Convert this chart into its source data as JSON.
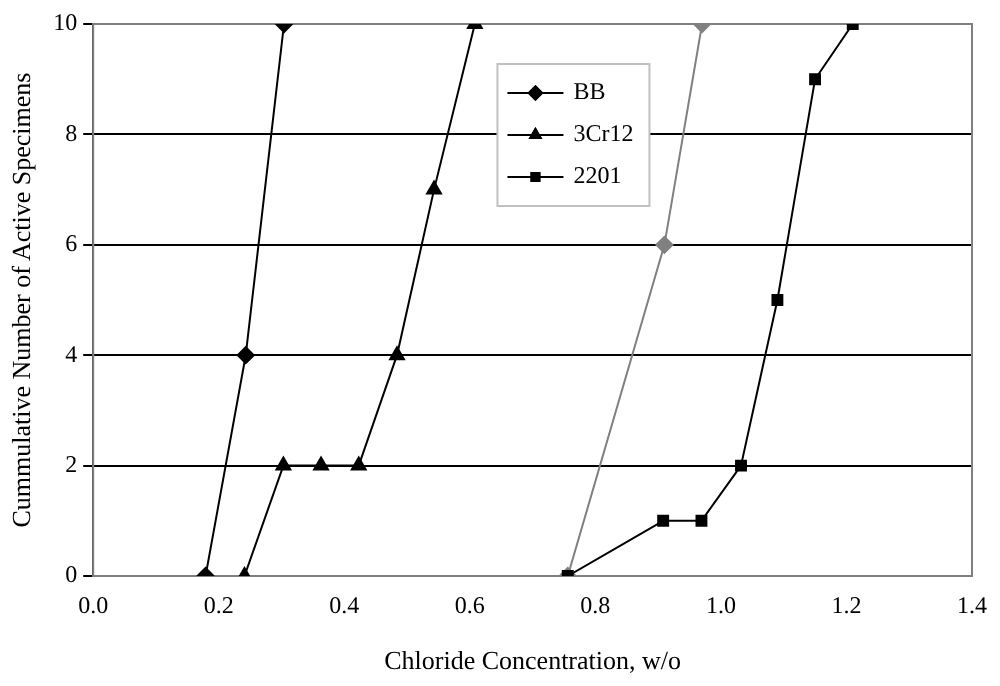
{
  "chart_data": {
    "type": "line",
    "xlabel": "Chloride Concentration, w/o",
    "ylabel": "Cummulative Number of Active Specimens",
    "xlim": [
      0,
      1.4
    ],
    "xticks": [
      {
        "value": 0,
        "label": "0.0"
      },
      {
        "value": 0.2,
        "label": "0.2"
      },
      {
        "value": 0.4,
        "label": "0.4"
      },
      {
        "value": 0.6,
        "label": "0.6"
      },
      {
        "value": 0.8,
        "label": "0.8"
      },
      {
        "value": 1,
        "label": "1.0"
      },
      {
        "value": 1.2,
        "label": "1.2"
      },
      {
        "value": 1.4,
        "label": "1.4"
      }
    ],
    "ylim": [
      0,
      10
    ],
    "yticks": [
      0,
      2,
      4,
      6,
      8,
      10
    ],
    "grid": "y",
    "legend": "top",
    "series": [
      {
        "name": "BB",
        "color": "#000000",
        "marker": "diamond",
        "x": [
          0.179,
          0.243,
          0.304
        ],
        "values": [
          0,
          4,
          10
        ]
      },
      {
        "name": "3Cr12",
        "color": "#000000",
        "marker": "triangle",
        "x": [
          0.241,
          0.303,
          0.363,
          0.423,
          0.484,
          0.543,
          0.608
        ],
        "values": [
          0,
          2,
          2,
          2,
          4,
          7,
          10
        ]
      },
      {
        "name": "2201",
        "color": "#000000",
        "marker": "square",
        "x": [
          0.756,
          0.908,
          0.969,
          1.032,
          1.09,
          1.15,
          1.21
        ],
        "values": [
          0,
          1,
          1,
          2,
          5,
          9,
          10
        ]
      },
      {
        "color": "#808080",
        "marker": "diamond",
        "x": [
          0.756,
          0.91,
          0.97
        ],
        "values": [
          0,
          6,
          10
        ]
      }
    ]
  }
}
